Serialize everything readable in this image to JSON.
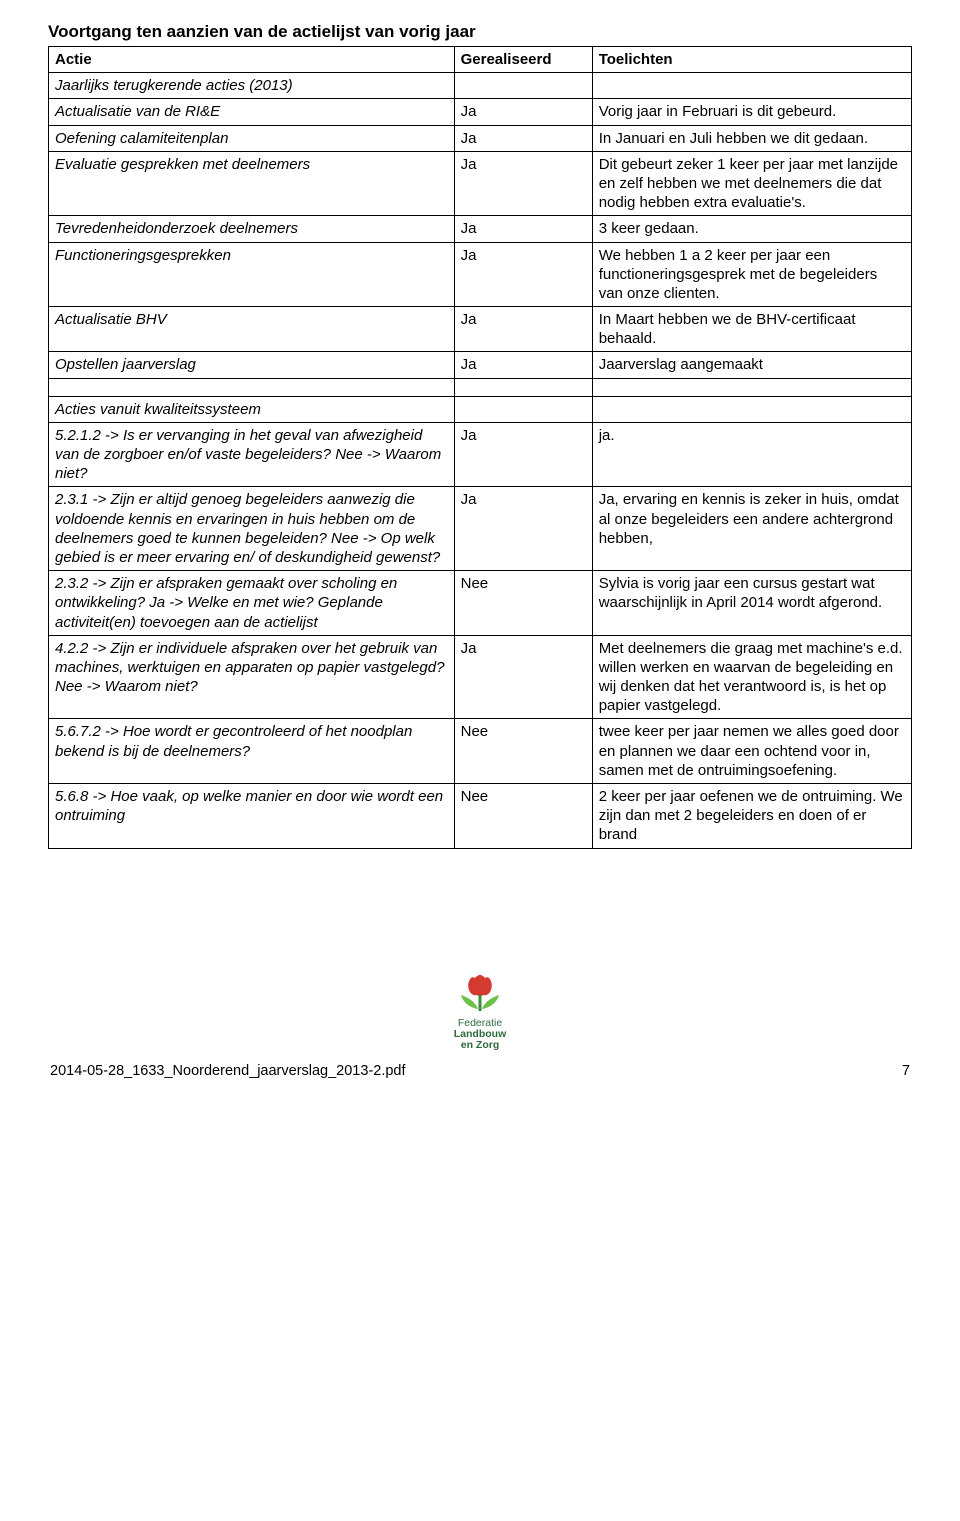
{
  "title": "Voortgang ten aanzien van de actielijst van vorig jaar",
  "header": {
    "c1": "Actie",
    "c2": "Gerealiseerd",
    "c3": "Toelichten"
  },
  "section1_label": "Jaarlijks terugkerende acties (2013)",
  "rows1": [
    {
      "a": "Actualisatie van de RI&E",
      "r": "Ja",
      "t": "Vorig jaar in Februari is dit gebeurd."
    },
    {
      "a": "Oefening calamiteitenplan",
      "r": "Ja",
      "t": "In Januari en Juli hebben we dit gedaan."
    },
    {
      "a": "Evaluatie gesprekken met deelnemers",
      "r": "Ja",
      "t": "Dit gebeurt zeker 1 keer per jaar met lanzijde en zelf hebben we met deelnemers die dat nodig hebben extra evaluatie's."
    },
    {
      "a": "Tevredenheidonderzoek deelnemers",
      "r": "Ja",
      "t": "3 keer gedaan."
    },
    {
      "a": "Functioneringsgesprekken",
      "r": "Ja",
      "t": "We hebben 1 a 2 keer per jaar een functioneringsgesprek met de begeleiders van onze clienten."
    },
    {
      "a": "Actualisatie BHV",
      "r": "Ja",
      "t": "In Maart hebben we de BHV-certificaat behaald."
    },
    {
      "a": "Opstellen jaarverslag",
      "r": "Ja",
      "t": "Jaarverslag aangemaakt"
    }
  ],
  "section2_label": "Acties vanuit kwaliteitssysteem",
  "rows2": [
    {
      "a": "5.2.1.2 -> Is er vervanging in het geval van afwezigheid van de zorgboer en/of vaste begeleiders?  Nee -> Waarom niet?",
      "r": "Ja",
      "t": "ja."
    },
    {
      "a": "2.3.1 -> Zijn er altijd genoeg begeleiders aanwezig die voldoende kennis en ervaringen in huis hebben om de deelnemers goed te kunnen begeleiden?  Nee -> Op welk gebied is er meer ervaring en/ of deskundigheid gewenst?",
      "r": "Ja",
      "t": " Ja, ervaring en kennis is zeker in huis, omdat al onze begeleiders een andere achtergrond hebben,"
    },
    {
      "a": "2.3.2 -> Zijn er afspraken gemaakt over scholing en ontwikkeling?  Ja -> Welke en met wie? Geplande activiteit(en) toevoegen aan de actielijst",
      "r": "Nee",
      "t": "Sylvia is vorig jaar een cursus gestart wat waarschijnlijk in April 2014 wordt afgerond."
    },
    {
      "a": "4.2.2 -> Zijn er individuele afspraken over het gebruik van machines, werktuigen en apparaten op papier vastgelegd?  Nee -> Waarom niet?",
      "r": "Ja",
      "t": "Met deelnemers die graag met machine's e.d. willen werken en waarvan de begeleiding en wij denken dat het verantwoord is, is het op papier vastgelegd."
    },
    {
      "a": "5.6.7.2 -> Hoe wordt er gecontroleerd of het noodplan bekend is bij de deelnemers?",
      "r": "Nee",
      "t": "twee keer per jaar nemen we alles goed door en plannen we daar een ochtend voor in, samen met de ontruimingsoefening."
    },
    {
      "a": "5.6.8 -> Hoe vaak, op welke manier en door wie wordt een ontruiming",
      "r": "Nee",
      "t": "2 keer per jaar oefenen we de ontruiming. We zijn dan met 2 begeleiders en doen of er brand"
    }
  ],
  "logo": {
    "line1": "Federatie",
    "line2": "Landbouw",
    "line3": "en Zorg",
    "tulip_red": "#d43b2e",
    "tulip_green": "#3c8b3f",
    "leaf_green": "#6fbf4a",
    "text_color": "#2d6a3a"
  },
  "footer": {
    "filename": "2014-05-28_1633_Noorderend_jaarverslag_2013-2.pdf",
    "page": "7"
  }
}
